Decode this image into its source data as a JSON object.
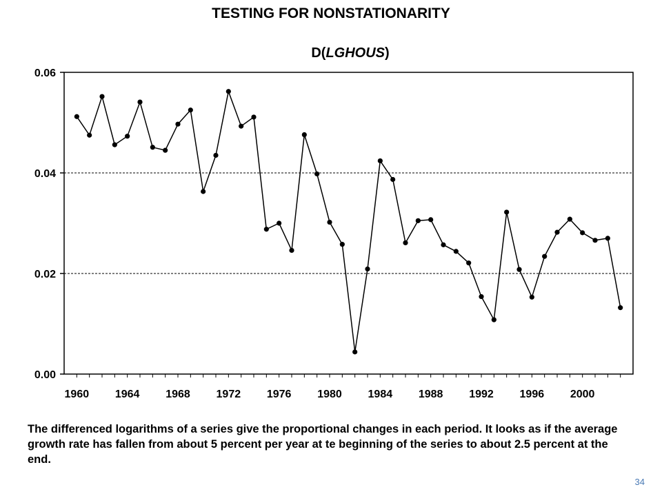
{
  "slide": {
    "title": "TESTING FOR NONSTATIONARITY",
    "chart_title_prefix": "D(",
    "chart_title_var": "LGHOUS",
    "chart_title_suffix": ")",
    "caption": "The differenced logarithms of a series give the proportional changes in each period.  It looks as if the average growth rate has fallen from about 5 percent per year at te beginning of the series to about 2.5 percent at the end.",
    "page_number": "34"
  },
  "chart_data": {
    "type": "line",
    "title": "D(LGHOUS)",
    "xlabel": "",
    "ylabel": "",
    "x": [
      1960,
      1961,
      1962,
      1963,
      1964,
      1965,
      1966,
      1967,
      1968,
      1969,
      1970,
      1971,
      1972,
      1973,
      1974,
      1975,
      1976,
      1977,
      1978,
      1979,
      1980,
      1981,
      1982,
      1983,
      1984,
      1985,
      1986,
      1987,
      1988,
      1989,
      1990,
      1991,
      1992,
      1993,
      1994,
      1995,
      1996,
      1997,
      1998,
      1999,
      2000,
      2001,
      2002,
      2003
    ],
    "series": [
      {
        "name": "",
        "values": [
          0.0512,
          0.0475,
          0.0552,
          0.0456,
          0.0473,
          0.0541,
          0.0451,
          0.0445,
          0.0497,
          0.0525,
          0.0363,
          0.0435,
          0.0562,
          0.0493,
          0.0511,
          0.0288,
          0.03,
          0.0246,
          0.0476,
          0.0398,
          0.0302,
          0.0258,
          0.0044,
          0.0209,
          0.0424,
          0.0387,
          0.0261,
          0.0305,
          0.0307,
          0.0257,
          0.0244,
          0.0221,
          0.0154,
          0.0108,
          0.0322,
          0.0208,
          0.0153,
          0.0234,
          0.0282,
          0.0308,
          0.0281,
          0.0266,
          0.027,
          0.0132
        ]
      }
    ],
    "ylim": [
      0,
      0.06
    ],
    "y_ticks": [
      "0.00",
      "0.02",
      "0.04",
      "0.06"
    ],
    "x_ticks": [
      "1960",
      "1964",
      "1968",
      "1972",
      "1976",
      "1980",
      "1984",
      "1988",
      "1992",
      "1996",
      "2000"
    ],
    "grid": "horizontal dashed",
    "line_color": "#000000",
    "marker_color": "#000000"
  }
}
